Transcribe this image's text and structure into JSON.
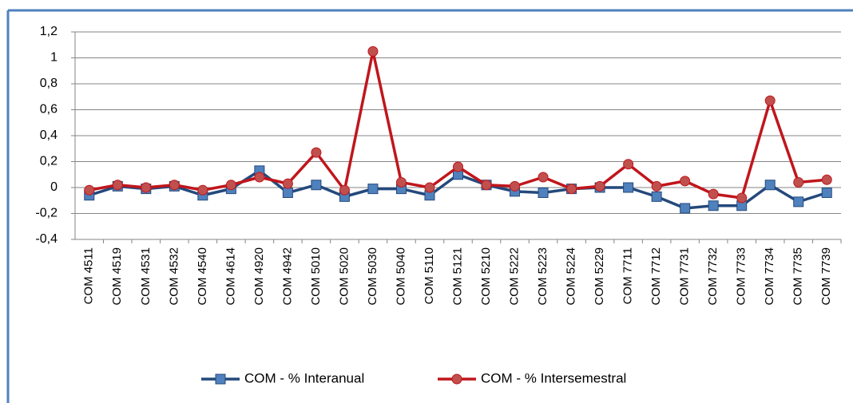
{
  "chart_data": {
    "type": "line",
    "categories": [
      "COM 4511",
      "COM 4519",
      "COM 4531",
      "COM 4532",
      "COM 4540",
      "COM 4614",
      "COM 4920",
      "COM 4942",
      "COM 5010",
      "COM 5020",
      "COM 5030",
      "COM 5040",
      "COM 5110",
      "COM 5121",
      "COM 5210",
      "COM 5222",
      "COM 5223",
      "COM 5224",
      "COM 5229",
      "COM 7711",
      "COM 7712",
      "COM 7731",
      "COM 7732",
      "COM 7733",
      "COM 7734",
      "COM 7735",
      "COM 7739"
    ],
    "series": [
      {
        "name": "COM - % Interanual",
        "color": "#24497c",
        "marker": "square",
        "values": [
          -0.06,
          0.01,
          -0.01,
          0.01,
          -0.06,
          -0.01,
          0.13,
          -0.04,
          0.02,
          -0.07,
          -0.01,
          -0.01,
          -0.06,
          0.1,
          0.02,
          -0.03,
          -0.04,
          -0.01,
          0,
          0,
          -0.07,
          -0.16,
          -0.14,
          -0.14,
          0.02,
          -0.11,
          -0.04
        ]
      },
      {
        "name": "COM - % Intersemestral",
        "color": "#c0161c",
        "marker": "circle",
        "values": [
          -0.02,
          0.02,
          0,
          0.02,
          -0.02,
          0.02,
          0.08,
          0.03,
          0.27,
          -0.02,
          1.05,
          0.04,
          0,
          0.16,
          0.02,
          0.01,
          0.08,
          -0.01,
          0.01,
          0.18,
          0.01,
          0.05,
          -0.05,
          -0.08,
          0.67,
          0.04,
          0.06
        ]
      }
    ],
    "ylim": [
      -0.4,
      1.2
    ],
    "yticks": [
      {
        "value": -0.4,
        "label": "-0,4"
      },
      {
        "value": -0.2,
        "label": "-0,2"
      },
      0,
      {
        "value": 0.2,
        "label": "0,2"
      },
      {
        "value": 0.4,
        "label": "0,4"
      },
      {
        "value": 0.6,
        "label": "0,6"
      },
      {
        "value": 0.8,
        "label": "0,8"
      },
      1,
      {
        "value": 1.2,
        "label": "1,2"
      }
    ],
    "grid": true,
    "legend": "bottom"
  }
}
